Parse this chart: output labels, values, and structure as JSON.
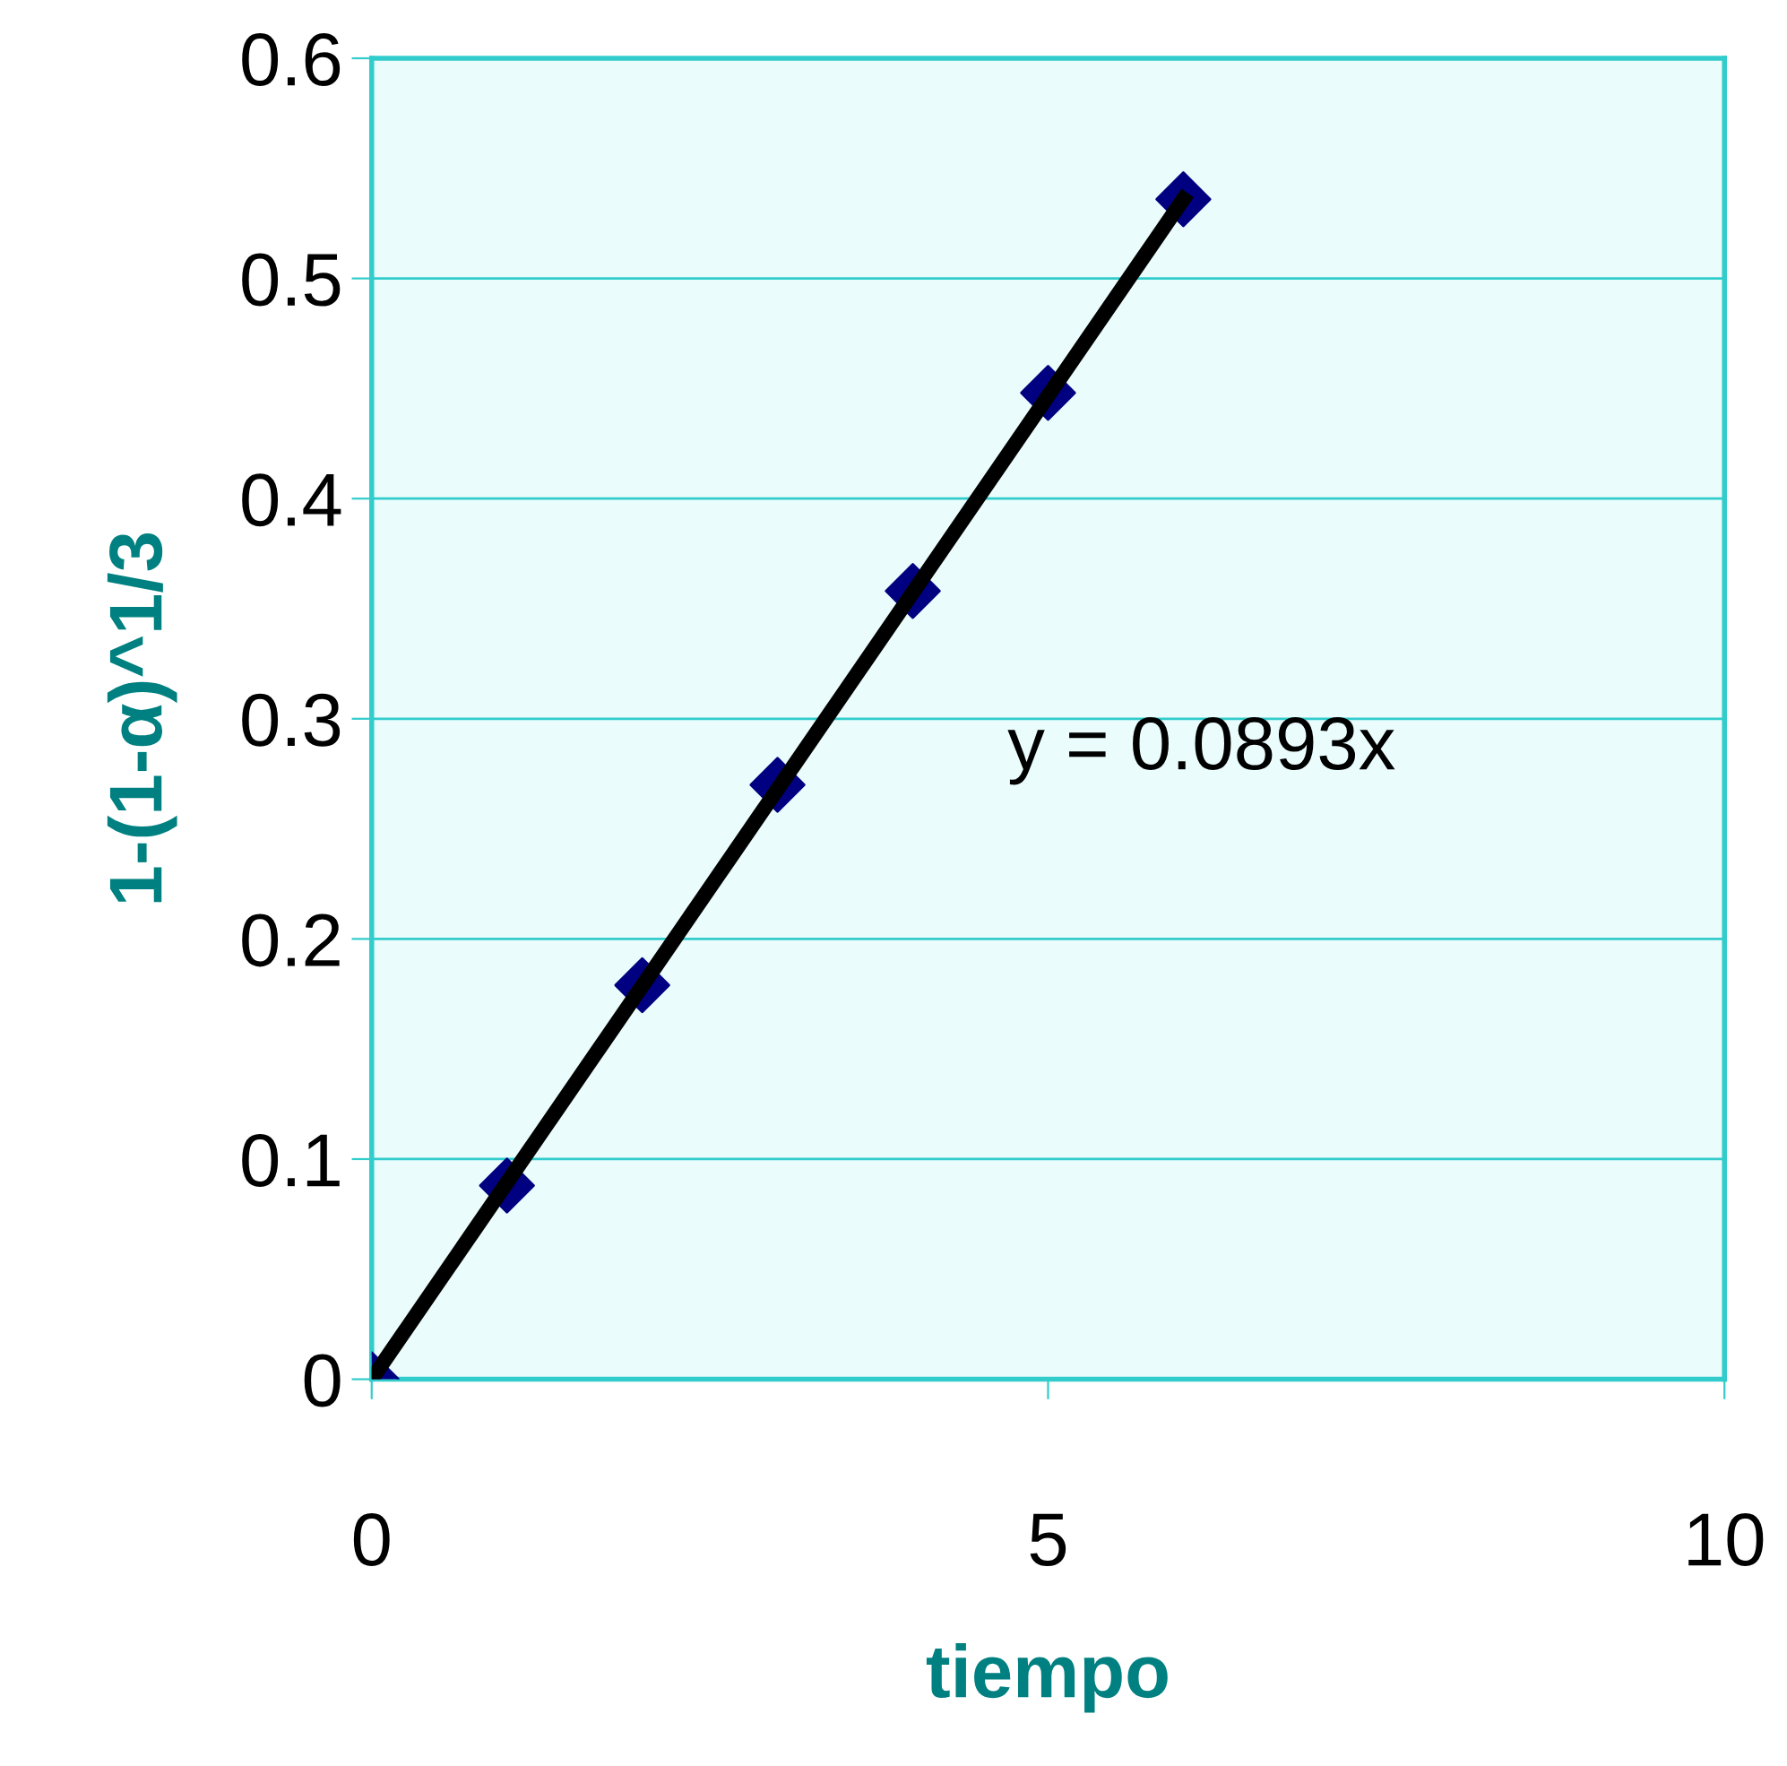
{
  "chart_data": {
    "type": "scatter",
    "xlabel": "tiempo",
    "ylabel": "1-(1-α)^1/3",
    "series": [
      {
        "color": "#000080",
        "marker": "diamond",
        "x": [
          0,
          1,
          2,
          3,
          4,
          5,
          6
        ],
        "values": [
          0,
          0.088,
          0.179,
          0.27,
          0.358,
          0.448,
          0.536
        ]
      },
      {
        "type": "line",
        "color": "#000000",
        "marker": "none",
        "line_style": "solid",
        "x": [
          0,
          6
        ],
        "values": [
          0,
          0.536
        ]
      }
    ],
    "annotations": [
      "y = 0.0893x"
    ],
    "xlim": [
      0,
      10
    ],
    "ylim": [
      0,
      0.6
    ],
    "xticks": [
      0,
      5,
      10
    ],
    "yticks": [
      0,
      0.1,
      0.2,
      0.3,
      0.4,
      0.5,
      0.6
    ],
    "grid": "y",
    "legend": false
  }
}
